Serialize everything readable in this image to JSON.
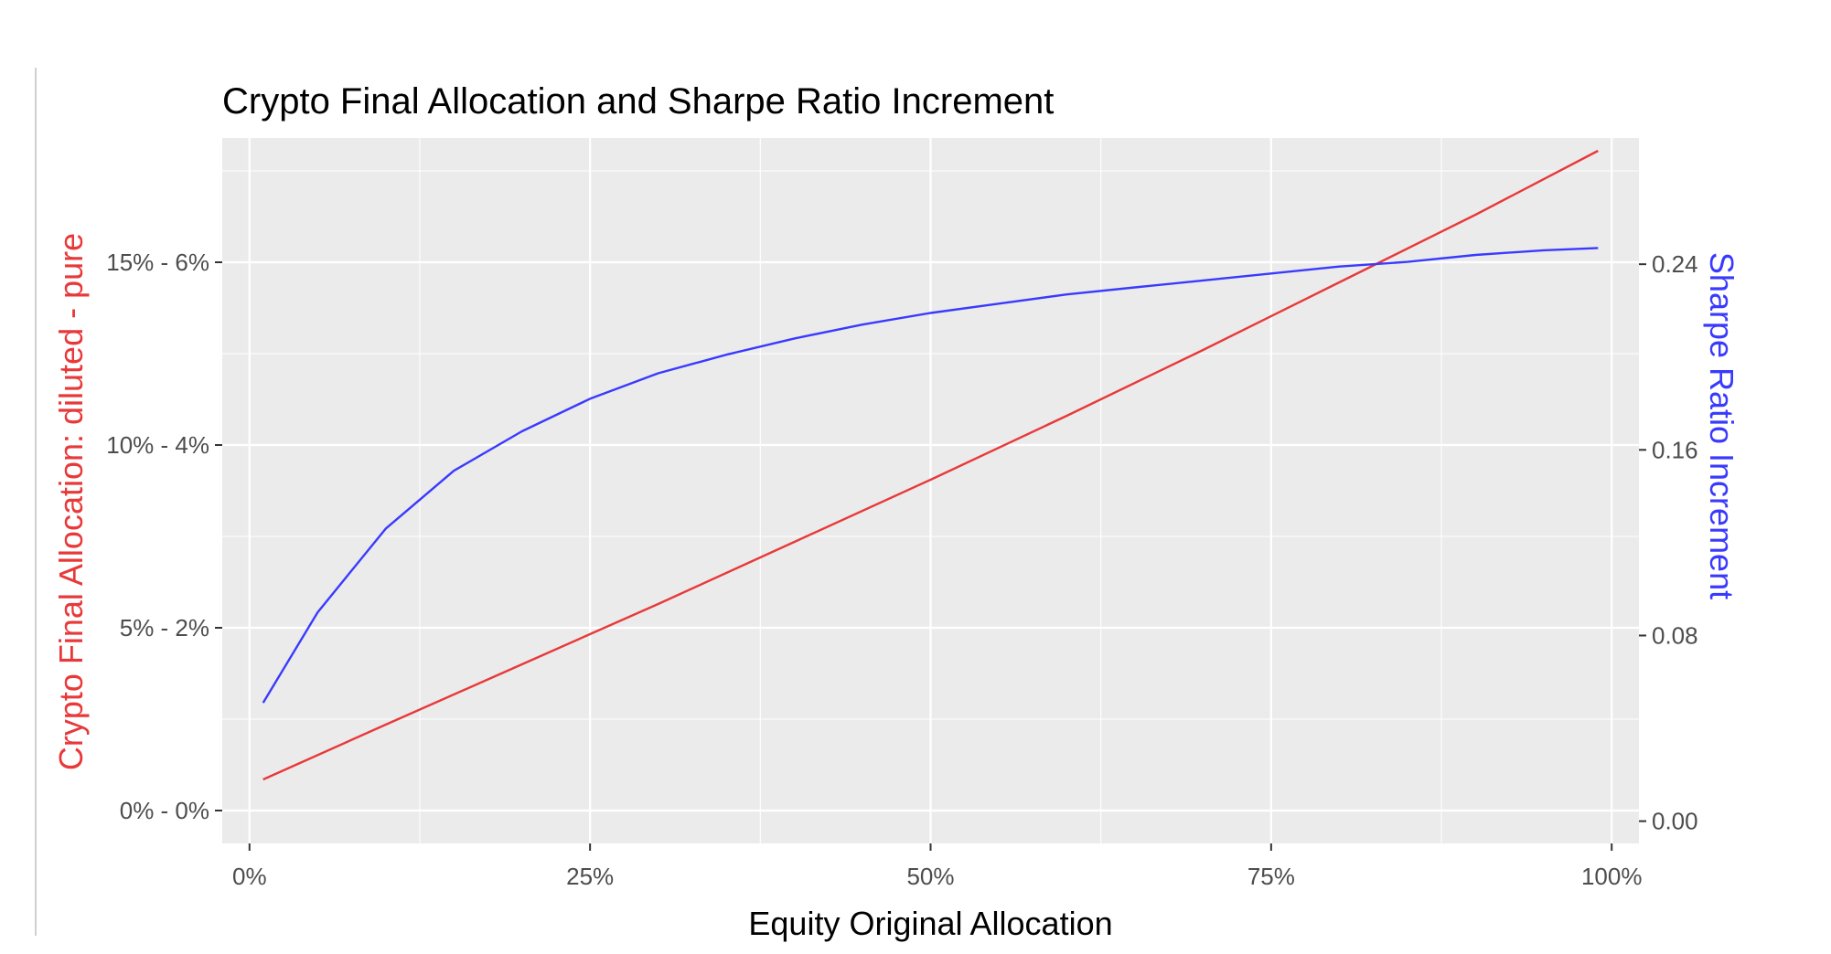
{
  "chart_data": {
    "type": "line",
    "title": "Crypto Final Allocation and Sharpe Ratio Increment",
    "xlabel": "Equity Original Allocation",
    "ylabel_left": "Crypto Final Allocation: diluted - pure",
    "ylabel_right": "Sharpe Ratio Increment",
    "xlim": [
      -0.02,
      1.02
    ],
    "ylim_left": [
      -0.009,
      0.184
    ],
    "ylim_right": [
      -0.0096,
      0.2944
    ],
    "x_ticks": [
      0,
      0.25,
      0.5,
      0.75,
      1.0
    ],
    "x_tick_labels": [
      "0%",
      "25%",
      "50%",
      "75%",
      "100%"
    ],
    "y_left_ticks": [
      0,
      0.05,
      0.1,
      0.15
    ],
    "y_left_tick_labels": [
      "0% - 0%",
      "5% - 2%",
      "10% - 4%",
      "15% - 6%"
    ],
    "y_right_ticks": [
      0,
      0.08,
      0.16,
      0.24
    ],
    "y_right_tick_labels": [
      "0.00",
      "0.08",
      "0.16",
      "0.24"
    ],
    "grid": true,
    "colors": {
      "left_series": "#e8393a",
      "right_series": "#3a3aff",
      "panel": "#ebebeb",
      "grid": "#ffffff",
      "axis_text": "#4d4d4d"
    },
    "series": [
      {
        "axis": "left",
        "color": "#e8393a",
        "x": [
          0.01,
          0.1,
          0.2,
          0.3,
          0.4,
          0.5,
          0.6,
          0.7,
          0.8,
          0.9,
          0.99
        ],
        "y": [
          0.0085,
          0.0235,
          0.04,
          0.0565,
          0.0735,
          0.0905,
          0.108,
          0.126,
          0.1445,
          0.163,
          0.1805
        ]
      },
      {
        "axis": "right",
        "color": "#3a3aff",
        "x": [
          0.01,
          0.05,
          0.1,
          0.15,
          0.2,
          0.25,
          0.3,
          0.35,
          0.4,
          0.45,
          0.5,
          0.55,
          0.6,
          0.65,
          0.7,
          0.75,
          0.8,
          0.85,
          0.9,
          0.95,
          0.99
        ],
        "y": [
          0.051,
          0.09,
          0.126,
          0.151,
          0.168,
          0.182,
          0.193,
          0.201,
          0.208,
          0.214,
          0.219,
          0.223,
          0.227,
          0.23,
          0.233,
          0.236,
          0.239,
          0.241,
          0.244,
          0.246,
          0.247
        ]
      }
    ]
  }
}
